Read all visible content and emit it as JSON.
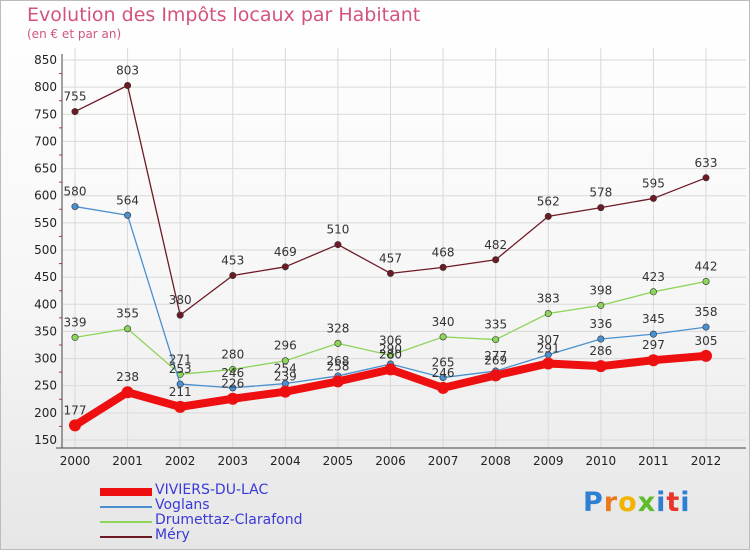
{
  "chart_data": {
    "type": "line",
    "title": "Evolution des Impôts locaux par Habitant",
    "subtitle": "(en € et par an)",
    "xlabel": "",
    "ylabel": "",
    "categories": [
      "2000",
      "2001",
      "2002",
      "2003",
      "2004",
      "2005",
      "2006",
      "2007",
      "2008",
      "2009",
      "2010",
      "2011",
      "2012"
    ],
    "ylim": [
      150,
      850
    ],
    "yticks": [
      150,
      200,
      250,
      300,
      350,
      400,
      450,
      500,
      550,
      600,
      650,
      700,
      750,
      800,
      850
    ],
    "grid": true,
    "legend_position": "bottom-left",
    "series": [
      {
        "name": "Méry",
        "color": "#6e1a24",
        "values": [
          755,
          803,
          380,
          453,
          469,
          510,
          457,
          468,
          482,
          562,
          578,
          595,
          633
        ]
      },
      {
        "name": "Drumettaz-Clarafond",
        "color": "#8cd45a",
        "values": [
          339,
          355,
          271,
          280,
          296,
          328,
          306,
          340,
          335,
          383,
          398,
          423,
          442
        ]
      },
      {
        "name": "Voglans",
        "color": "#4a90d0",
        "values": [
          580,
          564,
          253,
          246,
          254,
          268,
          290,
          265,
          277,
          307,
          336,
          345,
          358
        ]
      },
      {
        "name": "VIVIERS-DU-LAC",
        "color": "#ee1010",
        "values": [
          177,
          238,
          211,
          226,
          239,
          258,
          280,
          246,
          269,
          291,
          286,
          297,
          305
        ]
      }
    ],
    "legend": [
      "VIVIERS-DU-LAC",
      "Voglans",
      "Drumettaz-Clarafond",
      "Méry"
    ]
  },
  "logo": {
    "letters": [
      "P",
      "r",
      "o",
      "x",
      "i",
      "t",
      "i"
    ],
    "colors": [
      "#2d7fd3",
      "#eb7a1e",
      "#f0b400",
      "#5bbd2a",
      "#2d7fd3",
      "#e8342a",
      "#2d7fd3"
    ]
  }
}
